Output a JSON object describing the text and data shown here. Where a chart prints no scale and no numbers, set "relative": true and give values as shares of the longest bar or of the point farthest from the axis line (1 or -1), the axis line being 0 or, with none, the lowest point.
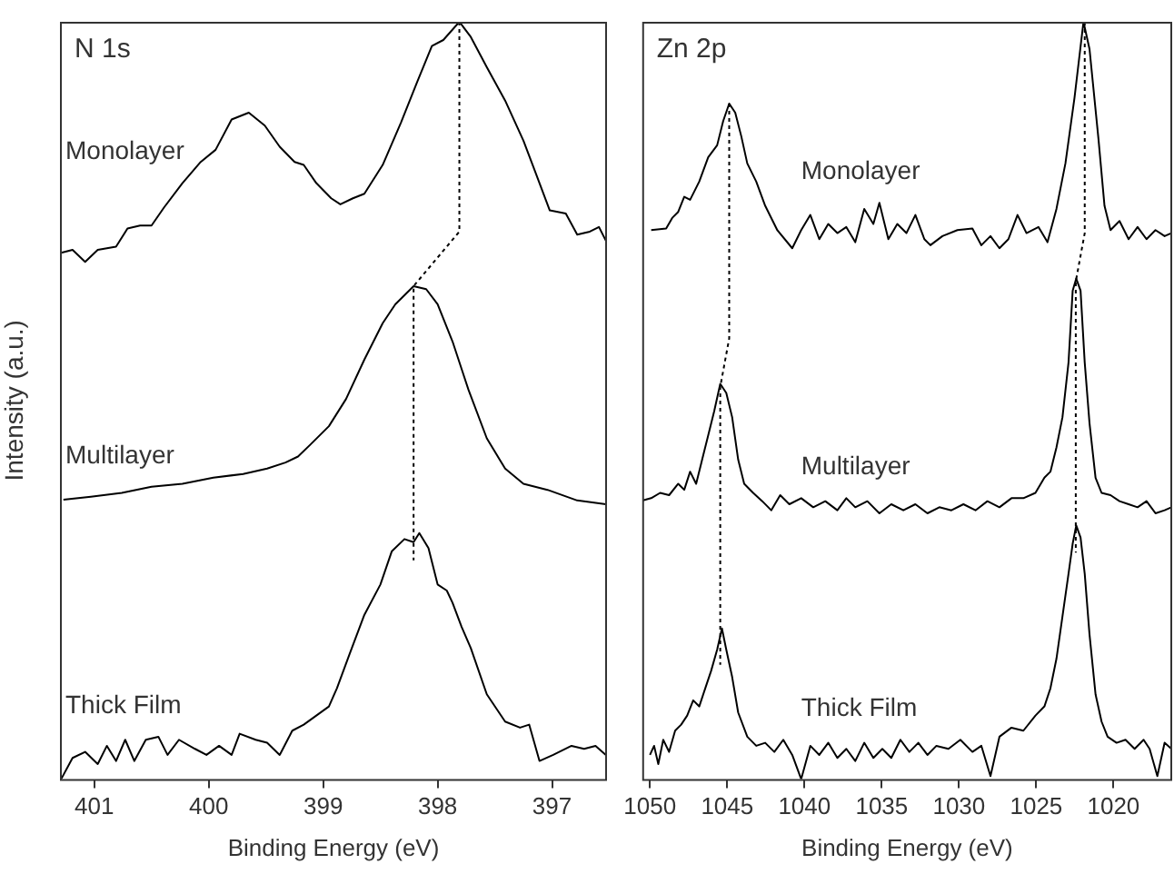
{
  "chart_data": [
    {
      "type": "line",
      "title": "N 1s",
      "xlabel": "Binding Energy (eV)",
      "ylabel": "Intensity (a.u.)",
      "relative": true,
      "legend": false,
      "xlim": [
        401.3,
        396.52
      ],
      "xticks": [
        401,
        400,
        399,
        398,
        397
      ],
      "series": [
        {
          "name": "Monolayer",
          "color": "#000000",
          "x": [
            401.29,
            401.19,
            401.08,
            400.97,
            400.81,
            400.71,
            400.6,
            400.5,
            400.39,
            400.23,
            400.07,
            399.94,
            399.8,
            399.65,
            399.51,
            399.38,
            399.25,
            399.17,
            399.06,
            398.93,
            398.85,
            398.74,
            398.64,
            398.48,
            398.32,
            398.18,
            398.05,
            397.95,
            397.81,
            397.71,
            397.57,
            397.41,
            397.25,
            397.15,
            397.02,
            396.88,
            396.78,
            396.67,
            396.59,
            396.53
          ],
          "values": [
            0.695,
            0.699,
            0.683,
            0.699,
            0.703,
            0.727,
            0.731,
            0.731,
            0.755,
            0.787,
            0.815,
            0.831,
            0.871,
            0.88,
            0.863,
            0.835,
            0.815,
            0.811,
            0.787,
            0.767,
            0.759,
            0.767,
            0.773,
            0.811,
            0.867,
            0.92,
            0.968,
            0.976,
            1.0,
            0.98,
            0.94,
            0.896,
            0.843,
            0.803,
            0.751,
            0.747,
            0.719,
            0.723,
            0.729,
            0.711
          ]
        },
        {
          "name": "Multilayer",
          "color": "#000000",
          "x": [
            401.27,
            401.03,
            400.76,
            400.5,
            400.23,
            399.96,
            399.7,
            399.49,
            399.33,
            399.22,
            399.11,
            398.95,
            398.8,
            398.64,
            398.48,
            398.37,
            398.21,
            398.1,
            398.0,
            397.87,
            397.73,
            397.57,
            397.41,
            397.25,
            397.04,
            396.78,
            396.53
          ],
          "values": [
            0.369,
            0.373,
            0.378,
            0.386,
            0.39,
            0.398,
            0.403,
            0.41,
            0.418,
            0.426,
            0.442,
            0.466,
            0.502,
            0.554,
            0.602,
            0.627,
            0.651,
            0.647,
            0.627,
            0.578,
            0.514,
            0.45,
            0.41,
            0.39,
            0.382,
            0.368,
            0.363
          ]
        },
        {
          "name": "Thick Film",
          "color": "#000000",
          "x": [
            401.29,
            401.19,
            401.08,
            400.97,
            400.89,
            400.81,
            400.73,
            400.65,
            400.55,
            400.44,
            400.36,
            400.26,
            400.12,
            400.02,
            399.91,
            399.8,
            399.73,
            399.59,
            399.49,
            399.38,
            399.27,
            399.17,
            399.06,
            398.95,
            398.88,
            398.77,
            398.64,
            398.5,
            398.4,
            398.29,
            398.21,
            398.16,
            398.08,
            398.0,
            397.92,
            397.87,
            397.79,
            397.71,
            397.57,
            397.41,
            397.28,
            397.2,
            397.11,
            396.99,
            396.83,
            396.72,
            396.62,
            396.53
          ],
          "values": [
            0.0,
            0.028,
            0.036,
            0.02,
            0.044,
            0.024,
            0.052,
            0.024,
            0.052,
            0.056,
            0.032,
            0.052,
            0.04,
            0.032,
            0.044,
            0.032,
            0.06,
            0.052,
            0.048,
            0.032,
            0.064,
            0.072,
            0.084,
            0.096,
            0.12,
            0.165,
            0.217,
            0.257,
            0.301,
            0.317,
            0.313,
            0.325,
            0.305,
            0.257,
            0.249,
            0.233,
            0.201,
            0.173,
            0.112,
            0.076,
            0.068,
            0.072,
            0.024,
            0.032,
            0.044,
            0.04,
            0.044,
            0.032
          ]
        },
        {
          "type": "line",
          "line_style": "dotted",
          "color": "#000000",
          "x": [
            397.81,
            397.81,
            398.21,
            398.21
          ],
          "values": [
            1.0,
            0.723,
            0.651,
            0.289
          ]
        }
      ]
    },
    {
      "type": "line",
      "title": "Zn 2p",
      "xlabel": "Binding Energy (eV)",
      "relative": true,
      "legend": false,
      "xlim": [
        1050.5,
        1016.2
      ],
      "xticks": [
        1050,
        1045,
        1040,
        1035,
        1030,
        1025,
        1020
      ],
      "series": [
        {
          "name": "Monolayer",
          "color": "#000000",
          "x": [
            1049.92,
            1048.95,
            1048.56,
            1048.17,
            1047.78,
            1047.4,
            1046.81,
            1046.23,
            1045.65,
            1045.26,
            1044.87,
            1044.48,
            1044.09,
            1043.7,
            1043.12,
            1042.54,
            1041.76,
            1040.79,
            1040.21,
            1039.62,
            1039.04,
            1038.46,
            1037.87,
            1037.29,
            1036.71,
            1036.13,
            1035.54,
            1035.15,
            1034.57,
            1033.99,
            1033.4,
            1032.82,
            1032.24,
            1031.85,
            1031.07,
            1030.1,
            1029.13,
            1028.55,
            1027.96,
            1027.38,
            1026.8,
            1026.21,
            1025.63,
            1024.85,
            1024.27,
            1023.69,
            1023.11,
            1022.52,
            1021.94,
            1021.55,
            1020.97,
            1020.58,
            1020.19,
            1019.61,
            1019.02,
            1018.44,
            1017.86,
            1017.28,
            1016.69,
            1016.25
          ],
          "values": [
            0.725,
            0.727,
            0.741,
            0.749,
            0.769,
            0.765,
            0.789,
            0.821,
            0.837,
            0.869,
            0.892,
            0.88,
            0.849,
            0.813,
            0.789,
            0.757,
            0.725,
            0.701,
            0.725,
            0.745,
            0.713,
            0.733,
            0.721,
            0.729,
            0.709,
            0.753,
            0.733,
            0.761,
            0.713,
            0.733,
            0.721,
            0.745,
            0.713,
            0.705,
            0.717,
            0.725,
            0.727,
            0.705,
            0.717,
            0.701,
            0.713,
            0.745,
            0.721,
            0.729,
            0.709,
            0.753,
            0.813,
            0.9,
            1.0,
            0.964,
            0.845,
            0.757,
            0.725,
            0.737,
            0.713,
            0.729,
            0.713,
            0.725,
            0.717,
            0.721
          ]
        },
        {
          "name": "Multilayer",
          "color": "#000000",
          "x": [
            1050.45,
            1049.92,
            1049.34,
            1048.76,
            1048.17,
            1047.78,
            1047.4,
            1047.01,
            1046.62,
            1046.23,
            1045.84,
            1045.45,
            1045.06,
            1044.68,
            1044.29,
            1043.9,
            1043.32,
            1042.73,
            1042.15,
            1041.57,
            1040.98,
            1040.21,
            1039.43,
            1038.65,
            1037.87,
            1037.29,
            1036.71,
            1035.93,
            1035.15,
            1034.38,
            1033.6,
            1032.82,
            1032.04,
            1031.27,
            1030.49,
            1029.71,
            1028.93,
            1028.16,
            1027.38,
            1026.6,
            1025.83,
            1025.05,
            1024.47,
            1024.08,
            1023.69,
            1023.3,
            1022.91,
            1022.64,
            1022.41,
            1022.13,
            1021.86,
            1021.55,
            1021.16,
            1020.77,
            1020.19,
            1019.61,
            1019.02,
            1018.44,
            1017.86,
            1017.28,
            1016.69,
            1016.25
          ],
          "values": [
            0.368,
            0.371,
            0.378,
            0.375,
            0.39,
            0.382,
            0.406,
            0.39,
            0.422,
            0.454,
            0.486,
            0.522,
            0.51,
            0.478,
            0.422,
            0.39,
            0.378,
            0.367,
            0.355,
            0.375,
            0.363,
            0.371,
            0.359,
            0.367,
            0.355,
            0.371,
            0.359,
            0.367,
            0.351,
            0.363,
            0.355,
            0.363,
            0.351,
            0.359,
            0.355,
            0.363,
            0.355,
            0.367,
            0.359,
            0.371,
            0.371,
            0.378,
            0.398,
            0.406,
            0.438,
            0.478,
            0.55,
            0.645,
            0.661,
            0.645,
            0.55,
            0.47,
            0.398,
            0.378,
            0.375,
            0.367,
            0.363,
            0.359,
            0.367,
            0.351,
            0.355,
            0.359
          ]
        },
        {
          "name": "Thick Film",
          "color": "#000000",
          "x": [
            1050.0,
            1049.73,
            1049.46,
            1049.14,
            1048.76,
            1048.37,
            1047.98,
            1047.59,
            1047.2,
            1046.81,
            1046.42,
            1046.04,
            1045.65,
            1045.34,
            1045.06,
            1044.68,
            1044.29,
            1043.7,
            1043.12,
            1042.54,
            1041.95,
            1041.37,
            1040.79,
            1040.21,
            1039.62,
            1039.04,
            1038.46,
            1037.87,
            1037.29,
            1036.71,
            1036.13,
            1035.54,
            1034.96,
            1034.38,
            1033.79,
            1033.21,
            1032.63,
            1032.04,
            1031.46,
            1030.68,
            1029.91,
            1029.13,
            1028.55,
            1027.96,
            1027.38,
            1026.6,
            1025.83,
            1025.05,
            1024.47,
            1024.08,
            1023.69,
            1023.3,
            1022.91,
            1022.64,
            1022.41,
            1022.13,
            1021.86,
            1021.55,
            1021.16,
            1020.77,
            1020.38,
            1019.8,
            1019.22,
            1018.63,
            1018.05,
            1017.66,
            1017.16,
            1016.69,
            1016.25
          ],
          "values": [
            0.032,
            0.044,
            0.02,
            0.052,
            0.036,
            0.064,
            0.072,
            0.084,
            0.104,
            0.096,
            0.12,
            0.143,
            0.171,
            0.199,
            0.171,
            0.135,
            0.088,
            0.056,
            0.044,
            0.048,
            0.036,
            0.052,
            0.032,
            0.0,
            0.044,
            0.032,
            0.048,
            0.028,
            0.04,
            0.024,
            0.048,
            0.028,
            0.04,
            0.028,
            0.052,
            0.036,
            0.048,
            0.032,
            0.044,
            0.04,
            0.052,
            0.036,
            0.044,
            0.004,
            0.056,
            0.068,
            0.064,
            0.084,
            0.096,
            0.12,
            0.159,
            0.215,
            0.271,
            0.311,
            0.335,
            0.319,
            0.271,
            0.191,
            0.112,
            0.076,
            0.056,
            0.048,
            0.052,
            0.04,
            0.052,
            0.04,
            0.004,
            0.048,
            0.04
          ]
        },
        {
          "type": "line",
          "line_style": "dotted",
          "color": "#000000",
          "x": [
            1044.87,
            1044.87,
            1045.45,
            1045.45
          ],
          "values": [
            0.892,
            0.582,
            0.518,
            0.151
          ]
        },
        {
          "type": "line",
          "line_style": "dotted",
          "color": "#000000",
          "x": [
            1021.86,
            1021.86,
            1022.44,
            1022.44
          ],
          "values": [
            1.0,
            0.721,
            0.657,
            0.299
          ]
        }
      ]
    }
  ]
}
